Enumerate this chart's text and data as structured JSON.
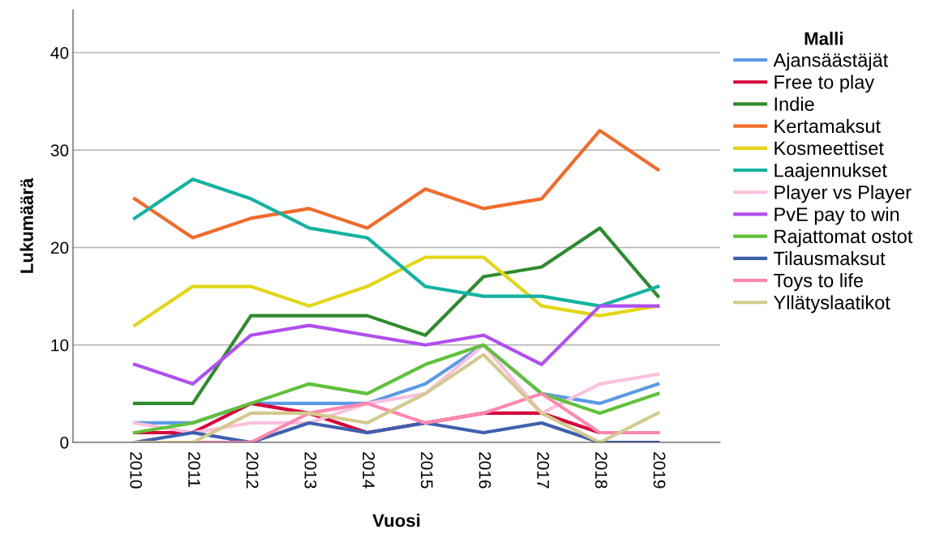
{
  "chart_data": {
    "type": "line",
    "xlabel": "Vuosi",
    "ylabel": "Lukumäärä",
    "legend_title": "Malli",
    "legend": "right",
    "categories": [
      "2010",
      "2011",
      "2012",
      "2013",
      "2014",
      "2015",
      "2016",
      "2017",
      "2018",
      "2019"
    ],
    "ylim": [
      0,
      44.4
    ],
    "yticks": [
      0,
      10,
      20,
      30,
      40
    ],
    "grid": "y",
    "line_style": "solid",
    "series": [
      {
        "name": "Ajansäästäjät",
        "color": "#5b9be6",
        "values": [
          2,
          2,
          4,
          4,
          4,
          6,
          10,
          5,
          4,
          6
        ]
      },
      {
        "name": "Free to play",
        "color": "#d7003a",
        "values": [
          1,
          1,
          4,
          3,
          1,
          2,
          3,
          3,
          1,
          1
        ]
      },
      {
        "name": "Indie",
        "color": "#2e8b2e",
        "values": [
          4,
          4,
          13,
          13,
          13,
          11,
          17,
          18,
          22,
          15
        ]
      },
      {
        "name": "Kertamaksut",
        "color": "#f26b2b",
        "values": [
          25,
          21,
          23,
          24,
          22,
          26,
          24,
          25,
          32,
          28
        ]
      },
      {
        "name": "Kosmeettiset",
        "color": "#e3d614",
        "values": [
          12,
          16,
          16,
          14,
          16,
          19,
          19,
          14,
          13,
          14
        ]
      },
      {
        "name": "Laajennukset",
        "color": "#13b3a0",
        "values": [
          23,
          27,
          25,
          22,
          21,
          16,
          15,
          15,
          14,
          16
        ]
      },
      {
        "name": "Player vs Player",
        "color": "#fcc0de",
        "values": [
          2,
          1,
          2,
          2,
          4,
          5,
          10,
          3,
          6,
          7
        ]
      },
      {
        "name": "PvE pay to win",
        "color": "#b04ff0",
        "values": [
          8,
          6,
          11,
          12,
          11,
          10,
          11,
          8,
          14,
          14
        ]
      },
      {
        "name": "Rajattomat ostot",
        "color": "#5fc23a",
        "values": [
          1,
          2,
          4,
          6,
          5,
          8,
          10,
          5,
          3,
          5
        ]
      },
      {
        "name": "Tilausmaksut",
        "color": "#3f5fae",
        "values": [
          0,
          1,
          0,
          2,
          1,
          2,
          1,
          2,
          0,
          0
        ]
      },
      {
        "name": "Toys to life",
        "color": "#ff88b0",
        "values": [
          0,
          0,
          0,
          3,
          4,
          2,
          3,
          5,
          1,
          1
        ]
      },
      {
        "name": "Yllätyslaatikot",
        "color": "#d4c98e",
        "values": [
          0,
          0,
          3,
          3,
          2,
          5,
          9,
          3,
          0,
          3
        ]
      }
    ]
  }
}
